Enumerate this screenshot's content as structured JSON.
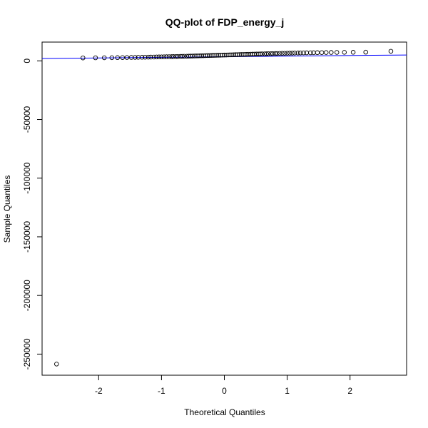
{
  "chart_data": {
    "type": "scatter",
    "title": "QQ-plot of FDP_energy_j",
    "xlabel": "Theoretical Quantiles",
    "ylabel": "Sample Quantiles",
    "xlim": [
      -2.9,
      2.9
    ],
    "ylim": [
      -268000,
      16000
    ],
    "xticks": [
      -2,
      -1,
      0,
      1,
      2
    ],
    "xtick_labels": [
      "-2",
      "-1",
      "0",
      "1",
      "2"
    ],
    "yticks": [
      0,
      -50000,
      -100000,
      -150000,
      -200000,
      -250000
    ],
    "ytick_labels": [
      "0",
      "-50000",
      "-100000",
      "-150000",
      "-200000",
      "-250000"
    ],
    "point_color": "#000000",
    "line_color": "#0000ff",
    "reference_line": [
      [
        -2.9,
        2000
      ],
      [
        2.9,
        5000
      ]
    ],
    "points": [
      [
        -2.67,
        -258500
      ],
      [
        -2.25,
        2500
      ],
      [
        -2.05,
        2600
      ],
      [
        -1.91,
        2650
      ],
      [
        -1.79,
        2700
      ],
      [
        -1.7,
        2750
      ],
      [
        -1.62,
        2800
      ],
      [
        -1.55,
        2850
      ],
      [
        -1.48,
        2900
      ],
      [
        -1.42,
        2950
      ],
      [
        -1.37,
        3000
      ],
      [
        -1.31,
        3050
      ],
      [
        -1.26,
        3100
      ],
      [
        -1.21,
        3150
      ],
      [
        -1.17,
        3200
      ],
      [
        -1.12,
        3250
      ],
      [
        -1.08,
        3300
      ],
      [
        -1.04,
        3350
      ],
      [
        -1.0,
        3400
      ],
      [
        -0.96,
        3450
      ],
      [
        -0.92,
        3500
      ],
      [
        -0.88,
        3550
      ],
      [
        -0.84,
        3600
      ],
      [
        -0.81,
        3650
      ],
      [
        -0.77,
        3700
      ],
      [
        -0.74,
        3750
      ],
      [
        -0.7,
        3800
      ],
      [
        -0.67,
        3850
      ],
      [
        -0.64,
        3900
      ],
      [
        -0.6,
        3950
      ],
      [
        -0.57,
        4000
      ],
      [
        -0.54,
        4050
      ],
      [
        -0.51,
        4100
      ],
      [
        -0.48,
        4150
      ],
      [
        -0.45,
        4200
      ],
      [
        -0.42,
        4250
      ],
      [
        -0.39,
        4300
      ],
      [
        -0.36,
        4350
      ],
      [
        -0.33,
        4400
      ],
      [
        -0.3,
        4450
      ],
      [
        -0.27,
        4500
      ],
      [
        -0.24,
        4550
      ],
      [
        -0.21,
        4600
      ],
      [
        -0.18,
        4650
      ],
      [
        -0.15,
        4700
      ],
      [
        -0.12,
        4750
      ],
      [
        -0.09,
        4800
      ],
      [
        -0.06,
        4850
      ],
      [
        -0.03,
        4900
      ],
      [
        0.0,
        4950
      ],
      [
        0.03,
        5000
      ],
      [
        0.06,
        5050
      ],
      [
        0.09,
        5100
      ],
      [
        0.12,
        5150
      ],
      [
        0.15,
        5200
      ],
      [
        0.18,
        5250
      ],
      [
        0.21,
        5300
      ],
      [
        0.24,
        5350
      ],
      [
        0.27,
        5400
      ],
      [
        0.3,
        5450
      ],
      [
        0.33,
        5500
      ],
      [
        0.36,
        5550
      ],
      [
        0.39,
        5600
      ],
      [
        0.42,
        5650
      ],
      [
        0.45,
        5700
      ],
      [
        0.48,
        5750
      ],
      [
        0.51,
        5800
      ],
      [
        0.54,
        5850
      ],
      [
        0.57,
        5900
      ],
      [
        0.6,
        5950
      ],
      [
        0.64,
        6000
      ],
      [
        0.67,
        6050
      ],
      [
        0.7,
        6100
      ],
      [
        0.74,
        6150
      ],
      [
        0.77,
        6200
      ],
      [
        0.81,
        6250
      ],
      [
        0.84,
        6300
      ],
      [
        0.88,
        6350
      ],
      [
        0.92,
        6400
      ],
      [
        0.96,
        6450
      ],
      [
        1.0,
        6500
      ],
      [
        1.04,
        6550
      ],
      [
        1.08,
        6600
      ],
      [
        1.12,
        6650
      ],
      [
        1.17,
        6700
      ],
      [
        1.21,
        6750
      ],
      [
        1.26,
        6800
      ],
      [
        1.31,
        6850
      ],
      [
        1.37,
        6900
      ],
      [
        1.42,
        6950
      ],
      [
        1.48,
        7000
      ],
      [
        1.55,
        7050
      ],
      [
        1.62,
        7100
      ],
      [
        1.7,
        7150
      ],
      [
        1.79,
        7200
      ],
      [
        1.91,
        7250
      ],
      [
        2.05,
        7300
      ],
      [
        2.25,
        7400
      ],
      [
        2.65,
        8200
      ]
    ]
  }
}
